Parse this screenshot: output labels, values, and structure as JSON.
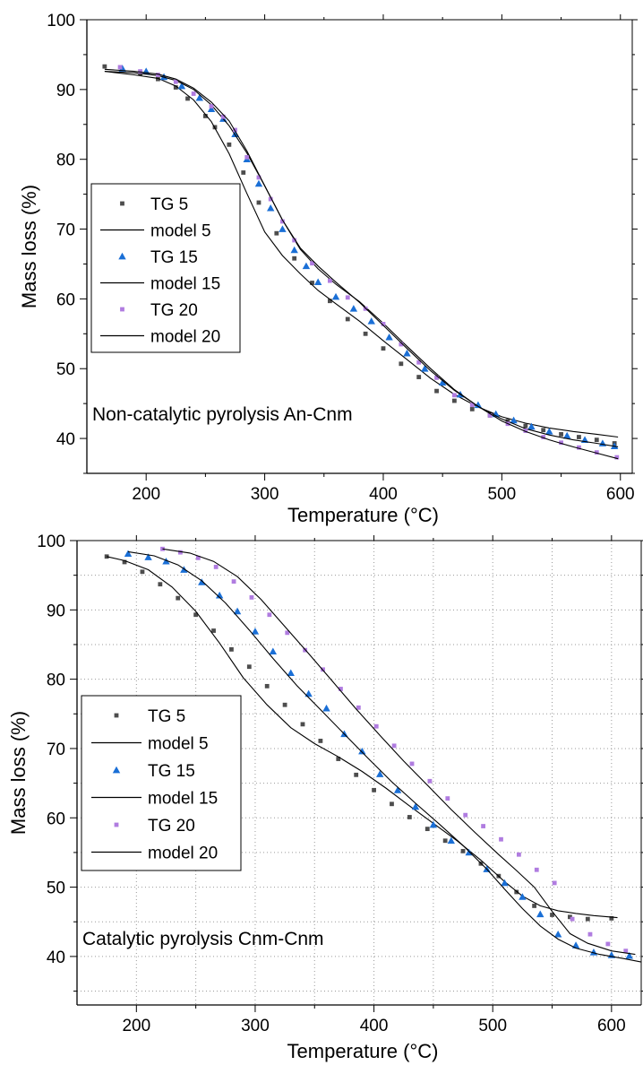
{
  "chart_data": [
    {
      "type": "scatter",
      "annotation": "Non-catalytic pyrolysis An-Cnm",
      "xlabel": "Temperature (°C)",
      "ylabel": "Mass loss (%)",
      "xlim": [
        150,
        610
      ],
      "ylim": [
        35,
        100
      ],
      "xticks": [
        200,
        300,
        400,
        500,
        600
      ],
      "yticks": [
        40,
        50,
        60,
        70,
        80,
        90,
        100
      ],
      "grid": false,
      "legend_position": "left",
      "series": [
        {
          "name": "TG 5",
          "kind": "points",
          "marker": "square",
          "color": "#4d4d4d",
          "x": [
            165,
            195,
            210,
            225,
            235,
            250,
            258,
            270,
            282,
            295,
            310,
            325,
            340,
            355,
            370,
            385,
            400,
            415,
            430,
            445,
            460,
            475,
            490,
            505,
            520,
            535,
            550,
            565,
            580,
            595
          ],
          "y": [
            93.3,
            92.3,
            91.5,
            90.3,
            88.7,
            86.2,
            84.6,
            82.1,
            78.1,
            73.8,
            69.4,
            65.8,
            62.3,
            59.7,
            57.1,
            55.0,
            52.9,
            50.7,
            48.8,
            46.8,
            45.4,
            44.2,
            43.3,
            42.5,
            41.8,
            41.2,
            40.6,
            40.2,
            39.8,
            39.3
          ]
        },
        {
          "name": "model 5",
          "kind": "line",
          "color": "#000000",
          "x": [
            165,
            190,
            210,
            225,
            240,
            255,
            270,
            285,
            300,
            315,
            330,
            345,
            360,
            380,
            400,
            420,
            440,
            460,
            480,
            500,
            520,
            540,
            560,
            580,
            598
          ],
          "y": [
            92.6,
            92.1,
            91.6,
            90.5,
            88.5,
            85.4,
            80.8,
            75.1,
            69.6,
            66.2,
            63.6,
            61.2,
            59.3,
            56.8,
            54.0,
            51.3,
            48.6,
            46.3,
            44.5,
            43.1,
            42.2,
            41.5,
            41.0,
            40.6,
            40.2
          ]
        },
        {
          "name": "TG 15",
          "kind": "points",
          "marker": "triangle",
          "color": "#1a6fd6",
          "x": [
            180,
            200,
            215,
            230,
            245,
            255,
            265,
            275,
            285,
            295,
            305,
            315,
            325,
            335,
            345,
            360,
            375,
            390,
            405,
            420,
            435,
            450,
            465,
            480,
            495,
            510,
            525,
            540,
            555,
            570,
            585,
            595
          ],
          "y": [
            93.0,
            92.6,
            91.8,
            90.5,
            88.8,
            87.2,
            85.8,
            83.6,
            80.0,
            76.5,
            73.0,
            70.0,
            67.0,
            64.7,
            62.4,
            60.3,
            58.6,
            56.8,
            54.5,
            52.2,
            50.0,
            48.0,
            46.3,
            44.8,
            43.5,
            42.6,
            41.7,
            41.0,
            40.4,
            39.8,
            39.3,
            38.9
          ]
        },
        {
          "name": "model 15",
          "kind": "line",
          "color": "#000000",
          "x": [
            165,
            190,
            210,
            225,
            240,
            255,
            270,
            285,
            300,
            315,
            330,
            345,
            360,
            380,
            400,
            420,
            440,
            460,
            480,
            500,
            520,
            540,
            560,
            580,
            598
          ],
          "y": [
            92.6,
            92.4,
            92.0,
            91.3,
            90.0,
            87.8,
            84.8,
            80.9,
            76.2,
            71.3,
            67.1,
            64.3,
            62.1,
            59.6,
            56.5,
            53.2,
            50.0,
            47.0,
            44.6,
            42.8,
            41.4,
            40.5,
            39.8,
            39.3,
            38.8
          ]
        },
        {
          "name": "TG 20",
          "kind": "points",
          "marker": "square",
          "color": "#b07ce0",
          "x": [
            178,
            195,
            210,
            225,
            240,
            255,
            265,
            275,
            285,
            295,
            305,
            315,
            325,
            340,
            355,
            370,
            385,
            400,
            415,
            430,
            445,
            460,
            475,
            490,
            505,
            520,
            535,
            550,
            565,
            580,
            597
          ],
          "y": [
            93.2,
            92.6,
            92.1,
            91.1,
            89.4,
            87.6,
            86.1,
            84.2,
            80.3,
            77.4,
            74.3,
            71.1,
            68.4,
            65.1,
            62.6,
            60.2,
            58.6,
            56.4,
            53.5,
            50.9,
            48.7,
            46.2,
            44.8,
            43.3,
            42.1,
            41.1,
            40.2,
            39.4,
            38.7,
            38.0,
            37.3
          ]
        },
        {
          "name": "model 20",
          "kind": "line",
          "color": "#000000",
          "x": [
            165,
            190,
            210,
            225,
            240,
            255,
            270,
            285,
            300,
            315,
            330,
            345,
            360,
            380,
            400,
            420,
            440,
            460,
            480,
            500,
            520,
            540,
            560,
            580,
            598
          ],
          "y": [
            92.9,
            92.6,
            92.2,
            91.5,
            90.2,
            88.2,
            85.5,
            81.2,
            76.2,
            71.3,
            67.3,
            64.7,
            62.4,
            59.5,
            56.2,
            52.9,
            49.7,
            46.9,
            44.6,
            42.5,
            41.0,
            39.8,
            38.8,
            37.9,
            37.1
          ]
        }
      ]
    },
    {
      "type": "scatter",
      "annotation": "Catalytic pyrolysis Cnm-Cnm",
      "xlabel": "Temperature (°C)",
      "ylabel": "Mass loss (%)",
      "xlim": [
        150,
        625
      ],
      "ylim": [
        33,
        100
      ],
      "xticks": [
        200,
        300,
        400,
        500,
        600
      ],
      "yticks": [
        40,
        50,
        60,
        70,
        80,
        90,
        100
      ],
      "grid": true,
      "legend_position": "left",
      "series": [
        {
          "name": "TG 5",
          "kind": "points",
          "marker": "square",
          "color": "#4d4d4d",
          "x": [
            175,
            190,
            205,
            220,
            235,
            250,
            265,
            280,
            295,
            310,
            325,
            340,
            355,
            370,
            385,
            400,
            415,
            430,
            445,
            460,
            475,
            490,
            505,
            520,
            535,
            550,
            565,
            580,
            600
          ],
          "y": [
            97.7,
            96.9,
            95.5,
            93.7,
            91.7,
            89.3,
            87.0,
            84.3,
            81.8,
            79.0,
            76.3,
            73.5,
            71.1,
            68.5,
            66.2,
            64.0,
            62.0,
            60.1,
            58.4,
            56.7,
            55.2,
            53.4,
            51.6,
            49.3,
            47.3,
            46.0,
            45.7,
            45.4,
            45.5
          ]
        },
        {
          "name": "model 5",
          "kind": "line",
          "color": "#000000",
          "x": [
            175,
            190,
            210,
            230,
            250,
            270,
            290,
            310,
            330,
            350,
            370,
            390,
            410,
            430,
            450,
            470,
            490,
            510,
            525,
            540,
            555,
            570,
            585,
            605
          ],
          "y": [
            97.7,
            97.1,
            95.8,
            93.3,
            89.8,
            85.2,
            80.2,
            76.3,
            73.0,
            70.7,
            68.8,
            66.7,
            64.3,
            61.7,
            59.2,
            56.7,
            53.9,
            50.8,
            48.7,
            47.3,
            46.6,
            46.2,
            45.9,
            45.6
          ]
        },
        {
          "name": "TG 15",
          "kind": "points",
          "marker": "triangle",
          "color": "#1a6fd6",
          "x": [
            193,
            210,
            225,
            240,
            255,
            270,
            285,
            300,
            315,
            330,
            345,
            360,
            375,
            390,
            405,
            420,
            435,
            450,
            465,
            480,
            495,
            510,
            525,
            540,
            555,
            570,
            585,
            600,
            615
          ],
          "y": [
            98.1,
            97.6,
            97.0,
            95.8,
            94.0,
            92.1,
            89.8,
            86.9,
            84.0,
            80.9,
            77.9,
            75.8,
            72.1,
            69.6,
            66.3,
            64.0,
            61.6,
            59.0,
            56.7,
            55.0,
            52.6,
            50.6,
            48.6,
            46.1,
            43.2,
            41.6,
            40.6,
            40.2,
            40.1
          ]
        },
        {
          "name": "model 15",
          "kind": "line",
          "color": "#000000",
          "x": [
            193,
            215,
            235,
            255,
            275,
            295,
            315,
            335,
            355,
            375,
            395,
            415,
            435,
            455,
            475,
            495,
            510,
            525,
            540,
            555,
            570,
            590,
            610,
            625
          ],
          "y": [
            98.4,
            97.8,
            96.5,
            94.2,
            91.0,
            87.1,
            83.0,
            79.1,
            75.6,
            72.1,
            68.6,
            65.2,
            62.1,
            59.1,
            56.0,
            52.6,
            49.7,
            46.9,
            44.4,
            42.5,
            41.2,
            40.3,
            39.7,
            39.2
          ]
        },
        {
          "name": "TG 20",
          "kind": "points",
          "marker": "square",
          "color": "#b07ce0",
          "x": [
            222,
            237,
            252,
            267,
            282,
            297,
            312,
            327,
            342,
            357,
            372,
            387,
            402,
            417,
            432,
            447,
            462,
            477,
            492,
            507,
            522,
            537,
            552,
            567,
            582,
            597,
            612
          ],
          "y": [
            98.8,
            98.3,
            97.5,
            96.2,
            94.1,
            91.8,
            89.3,
            86.7,
            84.2,
            81.4,
            78.6,
            75.9,
            73.2,
            70.4,
            67.8,
            65.3,
            62.8,
            60.4,
            58.8,
            56.9,
            54.7,
            52.5,
            50.6,
            45.4,
            43.2,
            41.8,
            40.8
          ]
        },
        {
          "name": "model 20",
          "kind": "line",
          "color": "#000000",
          "x": [
            222,
            245,
            265,
            285,
            305,
            325,
            345,
            365,
            385,
            405,
            425,
            445,
            465,
            485,
            505,
            520,
            535,
            550,
            565,
            580,
            600,
            620
          ],
          "y": [
            98.8,
            98.2,
            97.0,
            94.8,
            91.5,
            87.6,
            83.7,
            79.7,
            75.7,
            71.9,
            68.2,
            64.7,
            61.2,
            57.9,
            54.7,
            52.4,
            50.0,
            46.5,
            43.3,
            41.9,
            40.8,
            40.3
          ]
        }
      ]
    }
  ]
}
